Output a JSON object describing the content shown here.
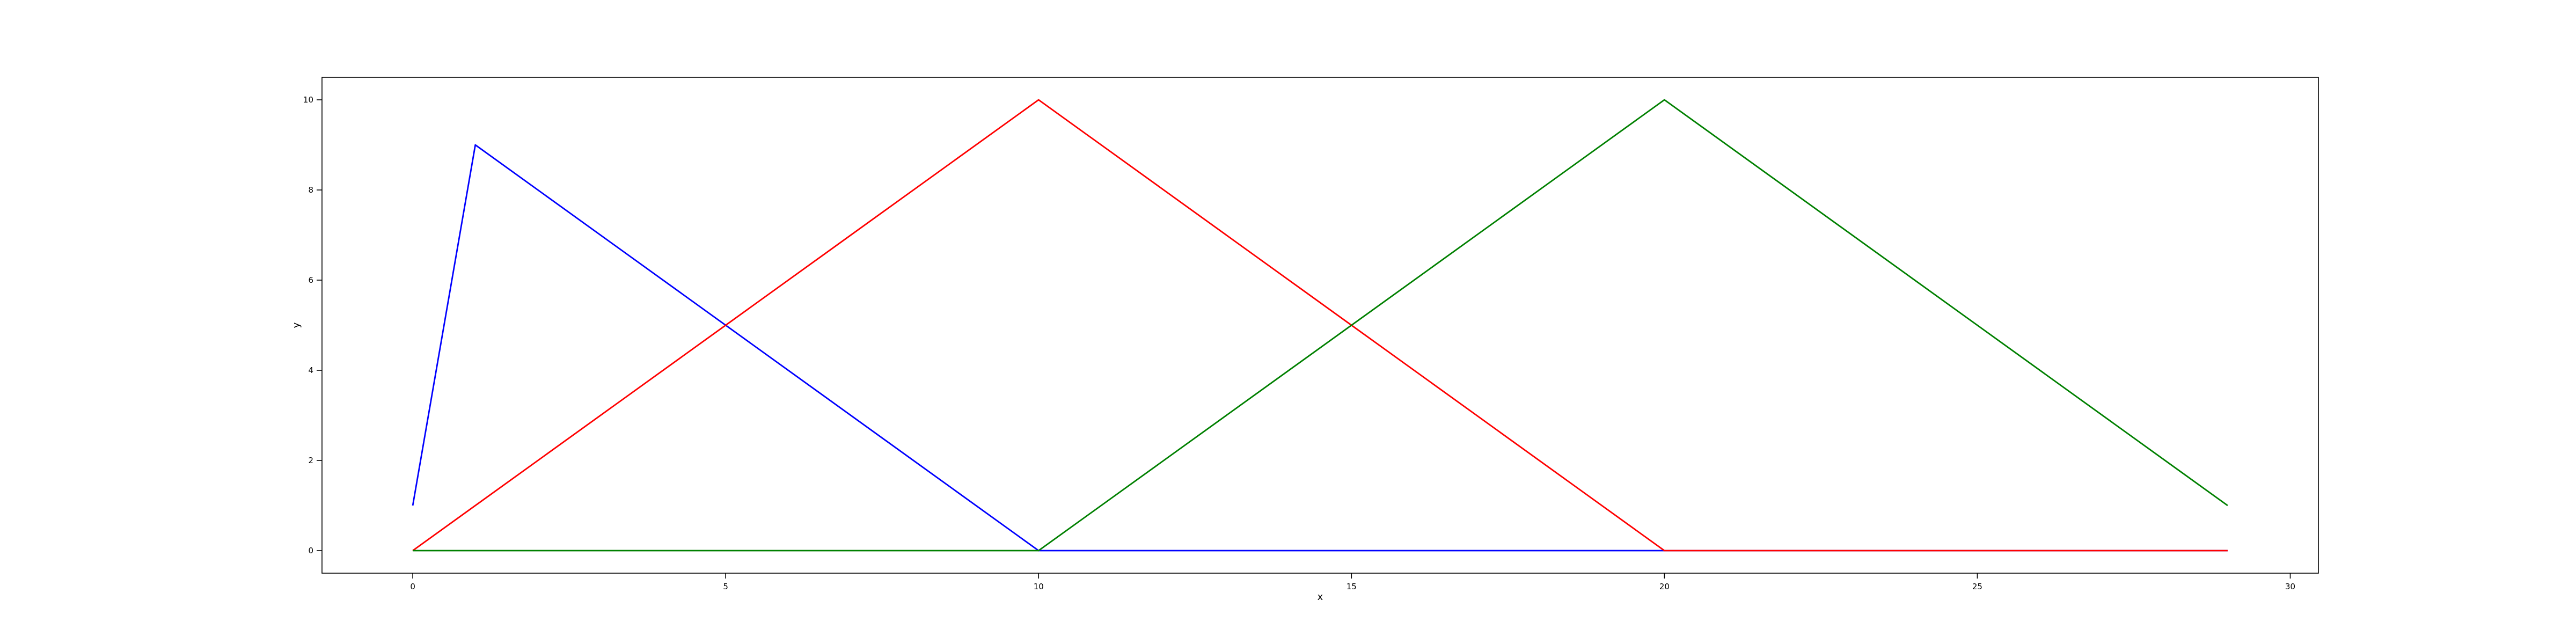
{
  "chart_data": {
    "type": "line",
    "title": "",
    "xlabel": "x",
    "ylabel": "y",
    "xlim": [
      -1.45,
      30.45
    ],
    "ylim": [
      -0.5,
      10.5
    ],
    "xticks": [
      0,
      5,
      10,
      15,
      20,
      25,
      30
    ],
    "yticks": [
      0,
      2,
      4,
      6,
      8,
      10
    ],
    "grid": false,
    "legend": "none",
    "x": [
      0,
      1,
      10,
      20,
      29
    ],
    "series": [
      {
        "color": "#0000ff",
        "points": [
          [
            0,
            1
          ],
          [
            1,
            9
          ],
          [
            10,
            0
          ],
          [
            29,
            0
          ]
        ]
      },
      {
        "color": "#ff0000",
        "points": [
          [
            0,
            0
          ],
          [
            10,
            10
          ],
          [
            20,
            0
          ],
          [
            29,
            0
          ]
        ]
      },
      {
        "color": "#008000",
        "points": [
          [
            0,
            0
          ],
          [
            10,
            0
          ],
          [
            20,
            10
          ],
          [
            29,
            1
          ]
        ]
      }
    ]
  }
}
